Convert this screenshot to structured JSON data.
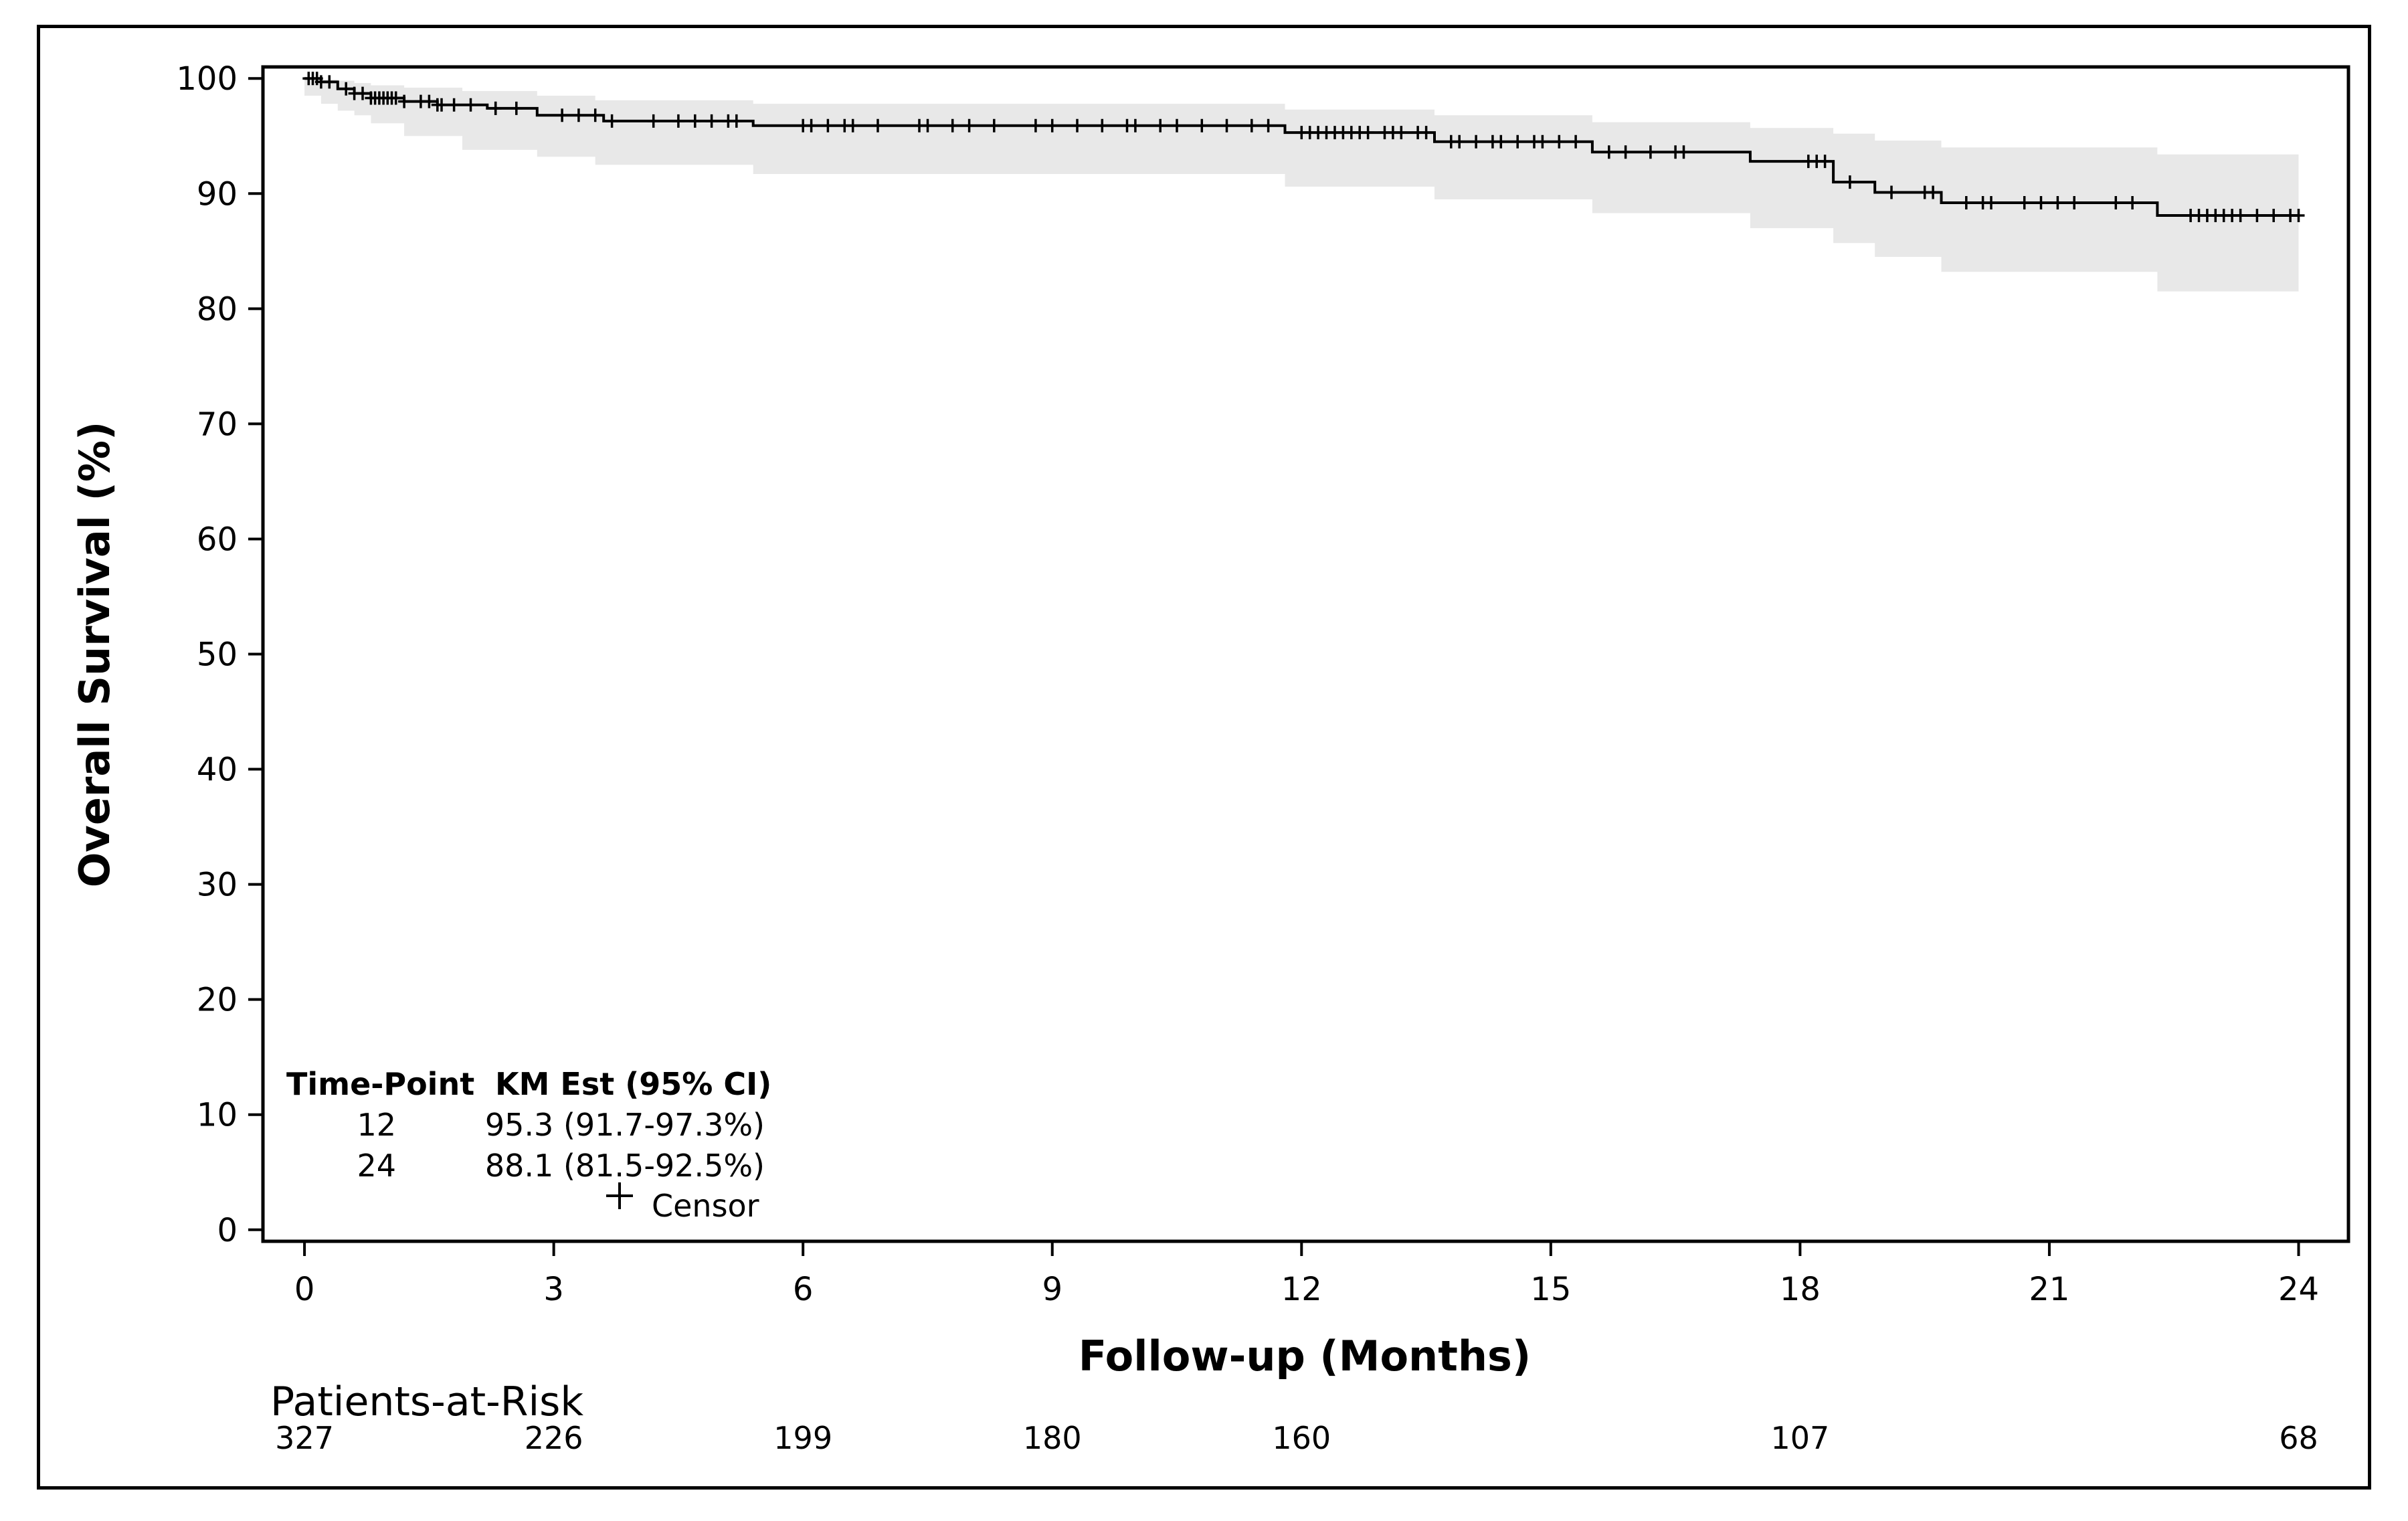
{
  "chart_data": {
    "type": "line",
    "title": "",
    "xlabel": "Follow-up (Months)",
    "ylabel": "Overall Survival (%)",
    "xlim": [
      -0.5,
      24.6
    ],
    "ylim": [
      -1,
      101
    ],
    "x_ticks": [
      0,
      3,
      6,
      9,
      12,
      15,
      18,
      21,
      24
    ],
    "y_ticks": [
      0,
      10,
      20,
      30,
      40,
      50,
      60,
      70,
      80,
      90,
      100
    ],
    "grid": false,
    "colors": {
      "curve": "#000000",
      "ci_band": "#e8e8e8",
      "frame": "#000000"
    },
    "series": [
      {
        "type": "step",
        "x": [
          0,
          0.2,
          0.4,
          0.6,
          0.8,
          1.2,
          1.6,
          2.2,
          2.8,
          3.6,
          5.4,
          11.8,
          13.6,
          15.5,
          17.4,
          18.4,
          18.9,
          19.7,
          22.3,
          24.0
        ],
        "y": [
          100,
          99.7,
          99.1,
          98.7,
          98.3,
          98.0,
          97.7,
          97.4,
          96.8,
          96.3,
          95.9,
          95.3,
          94.5,
          93.6,
          92.8,
          91.0,
          90.1,
          89.2,
          88.1,
          88.1
        ]
      }
    ],
    "ci_band": {
      "x": [
        0,
        0.2,
        0.4,
        0.6,
        0.8,
        1.2,
        1.9,
        2.8,
        3.5,
        5.4,
        11.8,
        13.6,
        15.5,
        17.4,
        18.4,
        18.9,
        19.7,
        22.3,
        24.0
      ],
      "lower": [
        100,
        98.5,
        97.8,
        97.2,
        96.8,
        96.1,
        95.0,
        93.8,
        93.2,
        92.5,
        91.7,
        90.6,
        89.5,
        88.3,
        87.0,
        85.7,
        84.5,
        83.2,
        81.5
      ],
      "upper": [
        100,
        99.9,
        99.8,
        99.6,
        99.4,
        99.2,
        98.9,
        98.5,
        98.1,
        97.8,
        97.3,
        96.8,
        96.2,
        95.7,
        95.2,
        94.6,
        94.0,
        93.4,
        92.5
      ]
    },
    "censor_x": [
      0.05,
      0.1,
      0.15,
      0.2,
      0.3,
      0.5,
      0.6,
      0.7,
      0.8,
      0.85,
      0.9,
      0.95,
      1.0,
      1.05,
      1.1,
      1.2,
      1.4,
      1.5,
      1.6,
      1.65,
      1.8,
      2.0,
      2.3,
      2.3,
      2.55,
      3.1,
      3.3,
      3.5,
      3.7,
      4.2,
      4.5,
      4.7,
      4.9,
      5.1,
      5.2,
      6.0,
      6.1,
      6.3,
      6.5,
      6.6,
      6.9,
      7.4,
      7.5,
      7.8,
      8.0,
      8.3,
      8.8,
      9.0,
      9.3,
      9.6,
      9.9,
      10.0,
      10.3,
      10.5,
      10.8,
      11.1,
      11.4,
      11.6,
      12.0,
      12.1,
      12.2,
      12.3,
      12.4,
      12.5,
      12.6,
      12.7,
      12.8,
      13.0,
      13.1,
      13.2,
      13.4,
      13.5,
      13.8,
      13.9,
      14.1,
      14.3,
      14.4,
      14.6,
      14.8,
      14.9,
      15.1,
      15.3,
      15.7,
      15.9,
      16.2,
      16.5,
      16.6,
      18.1,
      18.2,
      18.3,
      18.6,
      19.1,
      19.5,
      19.6,
      20.0,
      20.2,
      20.3,
      20.7,
      20.9,
      21.1,
      21.3,
      21.8,
      22.0,
      22.7,
      22.8,
      22.9,
      23.0,
      23.1,
      23.2,
      23.3,
      23.5,
      23.7,
      23.9,
      24.0
    ],
    "legend": {
      "position": "bottom-left",
      "entries": [
        "Censor"
      ]
    },
    "inset_table": {
      "headers": [
        "Time-Point",
        "KM Est (95% CI)"
      ],
      "rows": [
        {
          "time": "12",
          "est": "95.3 (91.7-97.3%)"
        },
        {
          "time": "24",
          "est": "88.1 (81.5-92.5%)"
        }
      ],
      "censor_label": "Censor"
    },
    "risk_table": {
      "title": "Patients-at-Risk",
      "times": [
        0,
        3,
        6,
        9,
        12,
        18,
        24
      ],
      "counts": [
        "327",
        "226",
        "199",
        "180",
        "160",
        "107",
        "68"
      ]
    }
  }
}
